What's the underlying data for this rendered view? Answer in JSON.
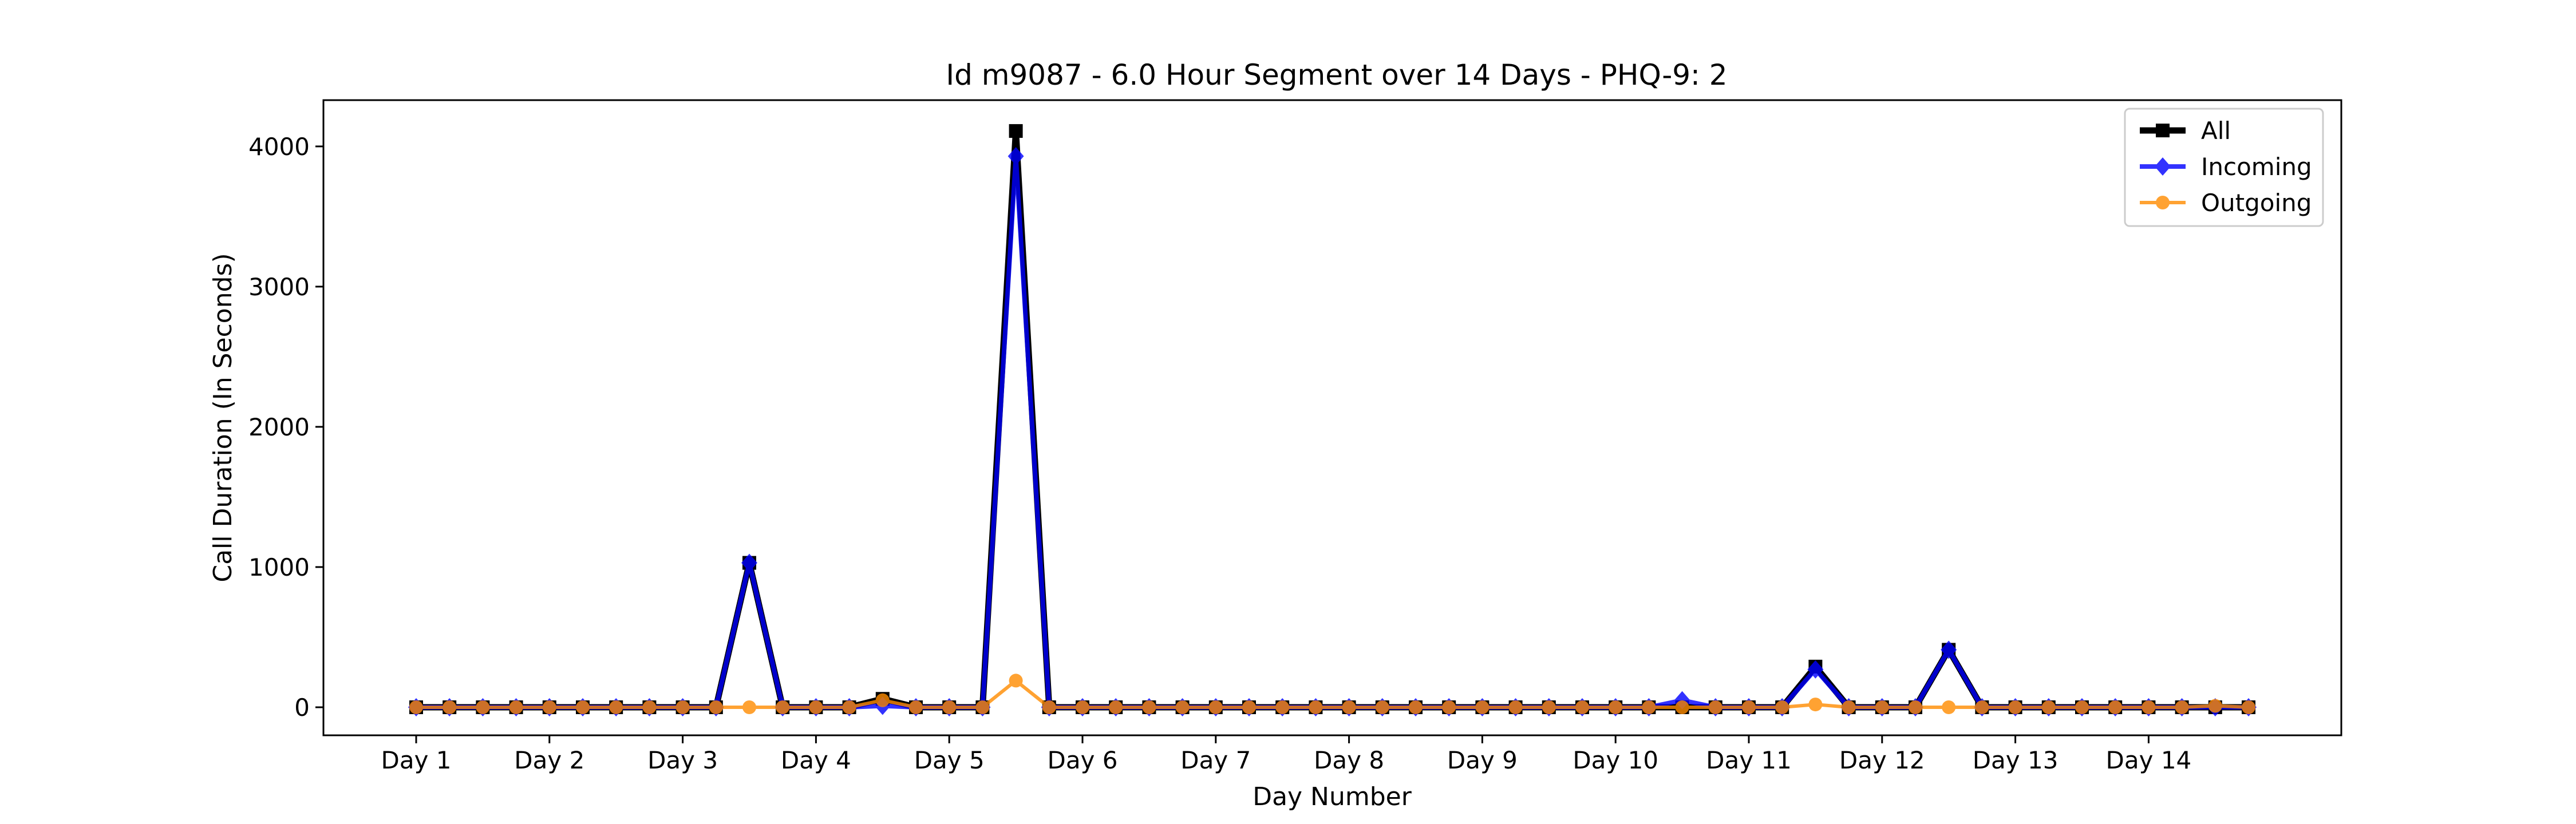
{
  "chart_data": {
    "type": "line",
    "title": "Id m9087 - 6.0 Hour Segment over 14 Days - PHQ-9: 2",
    "xlabel": "Day Number",
    "ylabel": "Call Duration (In Seconds)",
    "x_tick_labels": [
      "Day 1",
      "Day 2",
      "Day 3",
      "Day 4",
      "Day 5",
      "Day 6",
      "Day 7",
      "Day 8",
      "Day 9",
      "Day 10",
      "Day 11",
      "Day 12",
      "Day 13",
      "Day 14"
    ],
    "y_ticks": [
      0,
      1000,
      2000,
      3000,
      4000
    ],
    "ylim": [
      -200,
      4330
    ],
    "segments_per_day": 4,
    "grid": false,
    "legend_position": "top-right",
    "series": [
      {
        "name": "All",
        "color": "#000000",
        "marker": "square",
        "values": [
          0,
          0,
          0,
          0,
          0,
          0,
          0,
          0,
          0,
          0,
          1030,
          0,
          0,
          0,
          60,
          0,
          0,
          0,
          4110,
          0,
          0,
          0,
          0,
          0,
          0,
          0,
          0,
          0,
          0,
          0,
          0,
          0,
          0,
          0,
          0,
          0,
          0,
          0,
          0,
          0,
          0,
          0,
          290,
          0,
          0,
          0,
          410,
          0,
          0,
          0,
          0,
          0,
          0,
          0,
          0,
          0
        ]
      },
      {
        "name": "Incoming",
        "color": "#0000ff",
        "marker": "diamond",
        "values": [
          0,
          0,
          0,
          0,
          0,
          0,
          0,
          0,
          0,
          0,
          1030,
          0,
          0,
          0,
          10,
          0,
          0,
          0,
          3930,
          0,
          0,
          0,
          0,
          0,
          0,
          0,
          0,
          0,
          0,
          0,
          0,
          0,
          0,
          0,
          0,
          0,
          0,
          0,
          50,
          0,
          0,
          0,
          270,
          0,
          0,
          0,
          410,
          0,
          0,
          0,
          0,
          0,
          0,
          0,
          0,
          0
        ]
      },
      {
        "name": "Outgoing",
        "color": "#ff8c00",
        "marker": "circle",
        "values": [
          0,
          0,
          0,
          0,
          0,
          0,
          0,
          0,
          0,
          0,
          0,
          0,
          0,
          0,
          50,
          0,
          0,
          0,
          190,
          0,
          0,
          0,
          0,
          0,
          0,
          0,
          0,
          0,
          0,
          0,
          0,
          0,
          0,
          0,
          0,
          0,
          0,
          0,
          0,
          0,
          0,
          0,
          20,
          0,
          0,
          0,
          0,
          0,
          0,
          0,
          0,
          0,
          0,
          0,
          10,
          0
        ]
      }
    ]
  }
}
